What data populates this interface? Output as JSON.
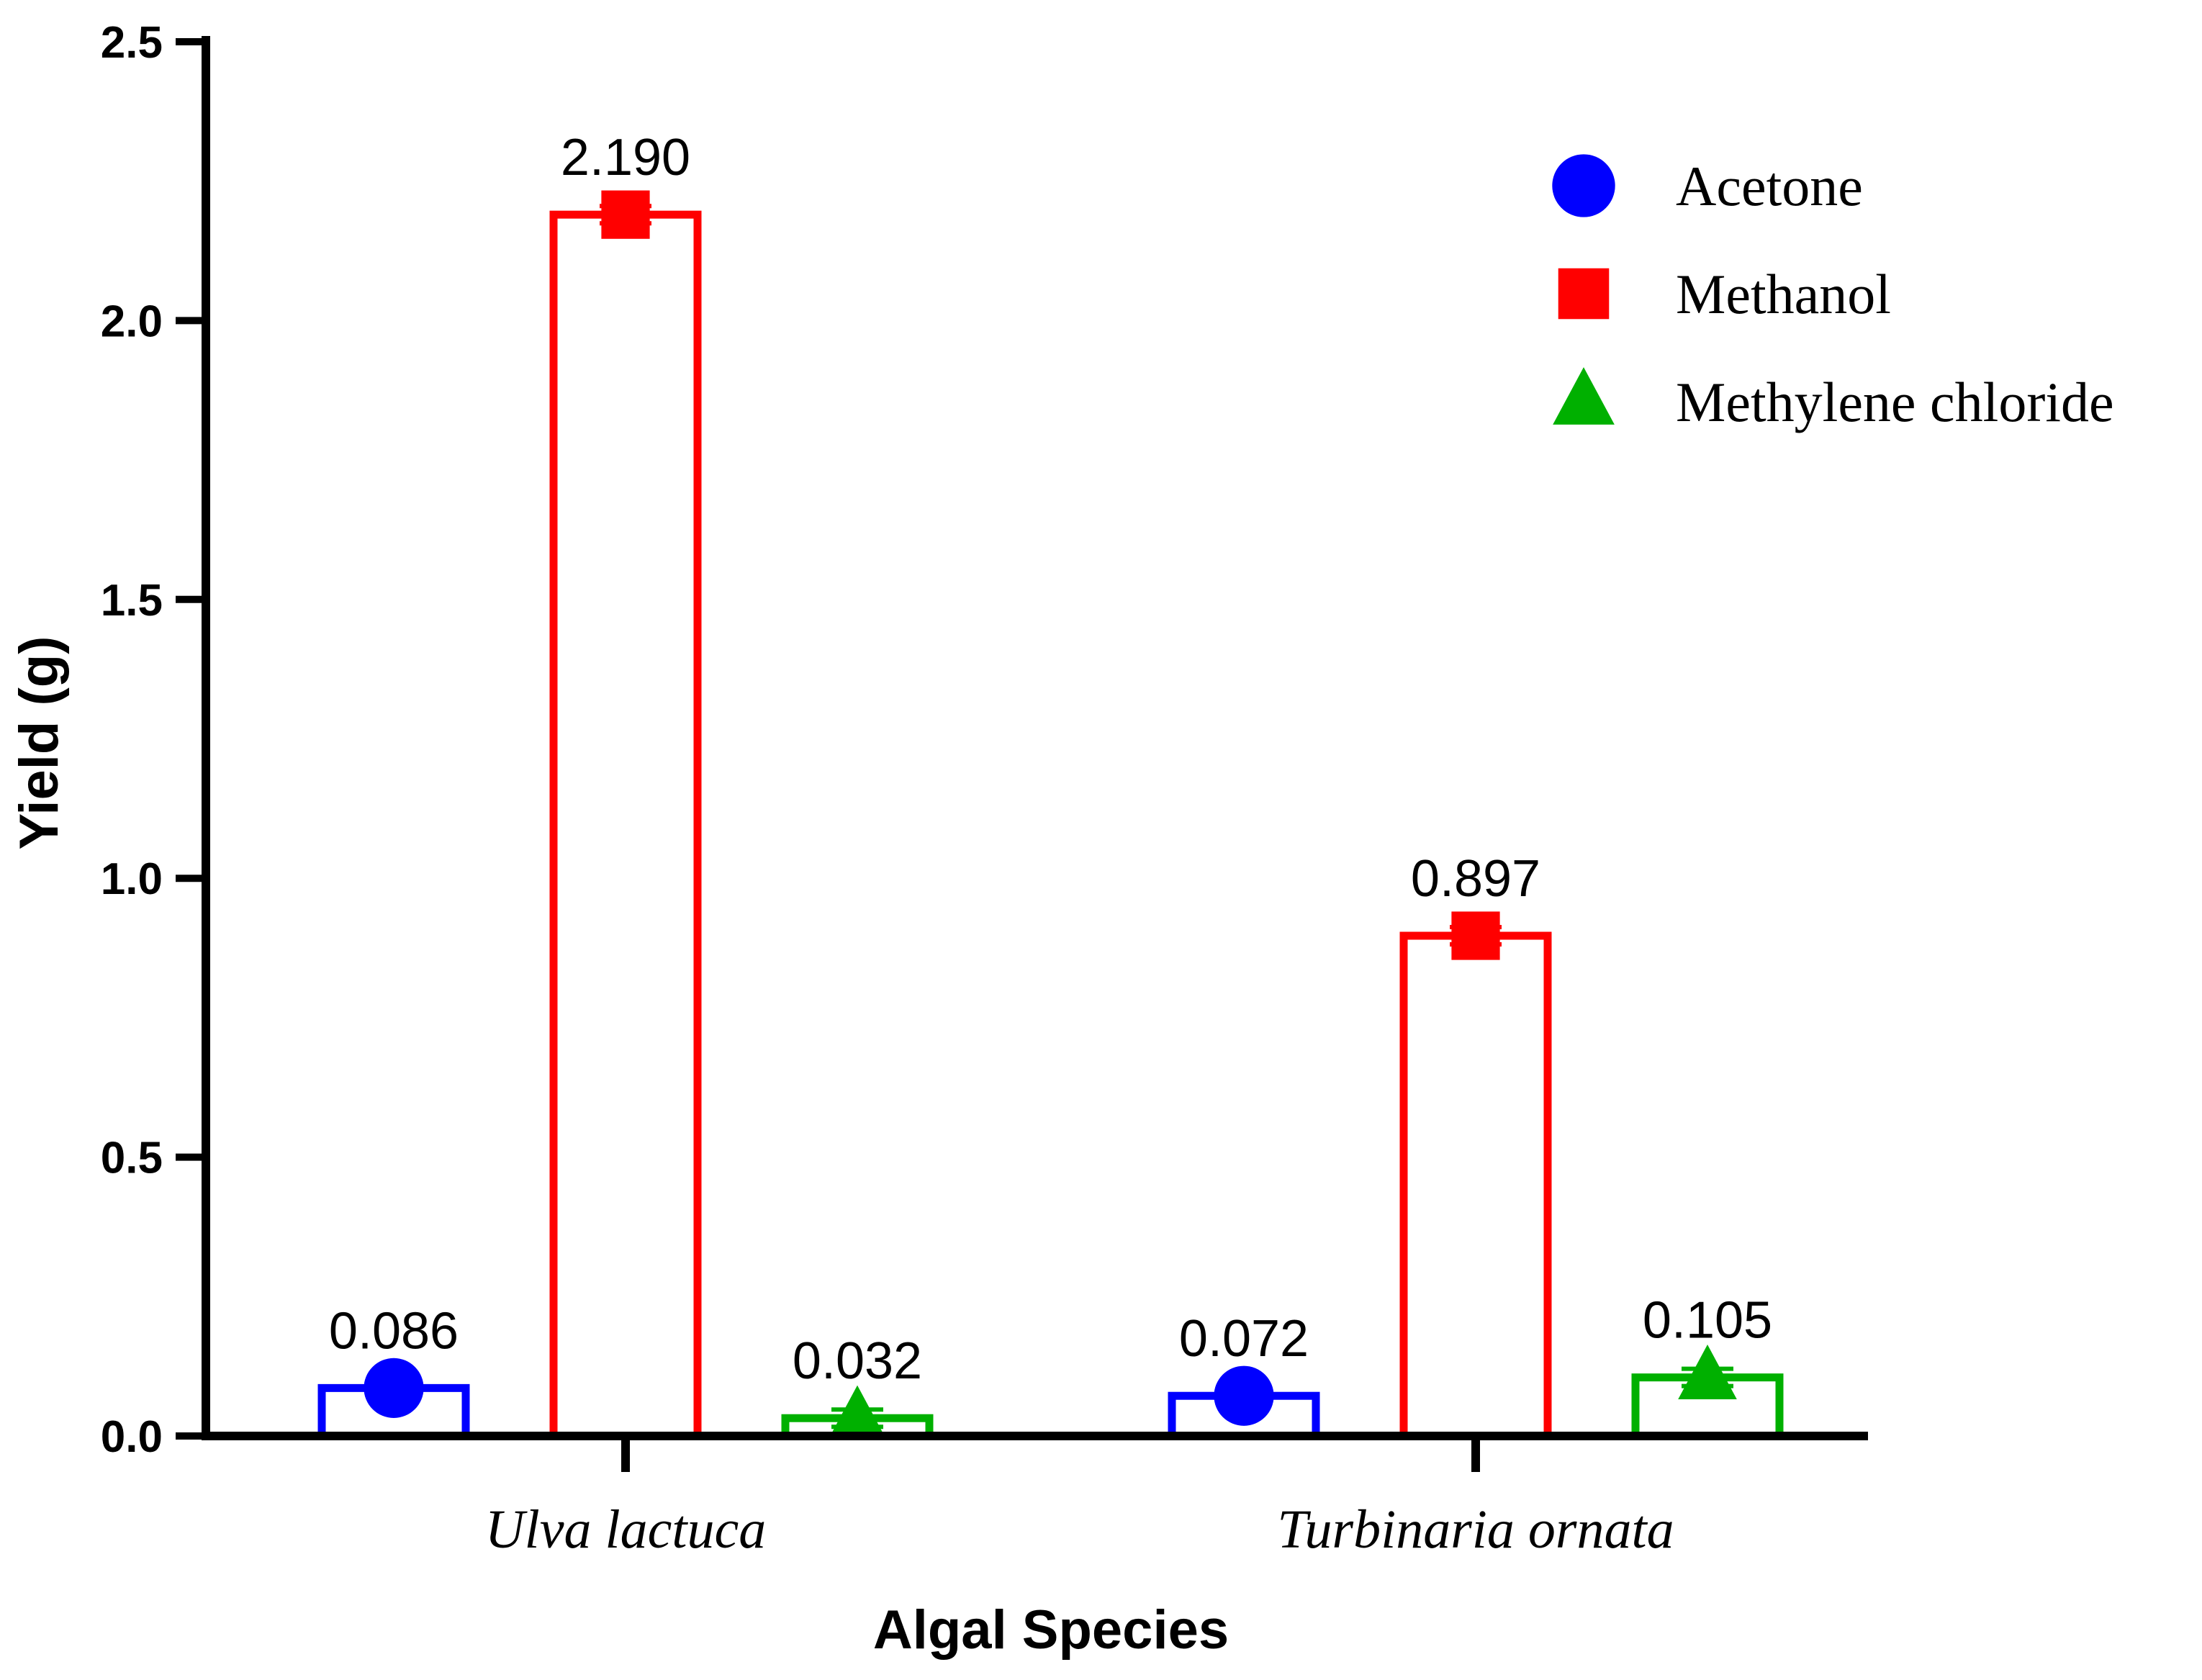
{
  "chart_data": {
    "type": "bar",
    "title": "",
    "xlabel": "Algal Species",
    "ylabel": "Yield (g)",
    "ylim": [
      0,
      2.5
    ],
    "yticks": [
      0.0,
      0.5,
      1.0,
      1.5,
      2.0,
      2.5
    ],
    "ytick_labels": [
      "0.0",
      "0.5",
      "1.0",
      "1.5",
      "2.0",
      "2.5"
    ],
    "categories": [
      "Ulva lactuca",
      "Turbinaria ornata"
    ],
    "legend_position": "top-right",
    "series": [
      {
        "name": "Acetone",
        "color": "#0000ff",
        "marker": "circle",
        "values": [
          0.086,
          0.072
        ],
        "labels": [
          "0.086",
          "0.072"
        ]
      },
      {
        "name": "Methanol",
        "color": "#ff0000",
        "marker": "square",
        "values": [
          2.19,
          0.897
        ],
        "labels": [
          "2.190",
          "0.897"
        ]
      },
      {
        "name": "Methylene chloride",
        "color": "#00b000",
        "marker": "triangle",
        "values": [
          0.032,
          0.105
        ],
        "labels": [
          "0.032",
          "0.105"
        ]
      }
    ]
  }
}
